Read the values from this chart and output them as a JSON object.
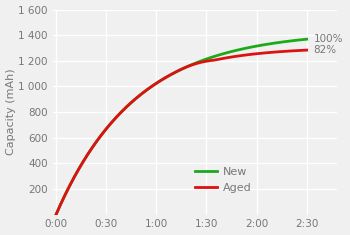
{
  "title": "",
  "ylabel": "Capacity (mAh)",
  "xlabel": "",
  "ylim": [
    0,
    1600
  ],
  "xlim": [
    0,
    150
  ],
  "yticks": [
    200,
    400,
    600,
    800,
    1000,
    1200,
    1400,
    1600
  ],
  "ytick_labels": [
    "200",
    "400",
    "600",
    "800",
    "1 000",
    "1 200",
    "1 400",
    "1 600"
  ],
  "xticks": [
    0,
    30,
    60,
    90,
    120,
    150
  ],
  "xtick_labels": [
    "0:00",
    "0:30",
    "1:00",
    "1:30",
    "2:00",
    "2:30"
  ],
  "new_color": "#1aaa1a",
  "aged_color": "#dd1111",
  "new_label": "New",
  "aged_label": "Aged",
  "new_end_pct": "100%",
  "aged_end_pct": "82%",
  "background_color": "#f0f0f0",
  "grid_color": "#ffffff",
  "text_color": "#777777",
  "legend_fontsize": 8,
  "ylabel_fontsize": 8,
  "tick_fontsize": 7.5,
  "new_cap": 1430,
  "new_rate": 0.021,
  "aged_cap": 1175,
  "aged_rate": 0.027,
  "blend_start": 75,
  "blend_end": 95
}
